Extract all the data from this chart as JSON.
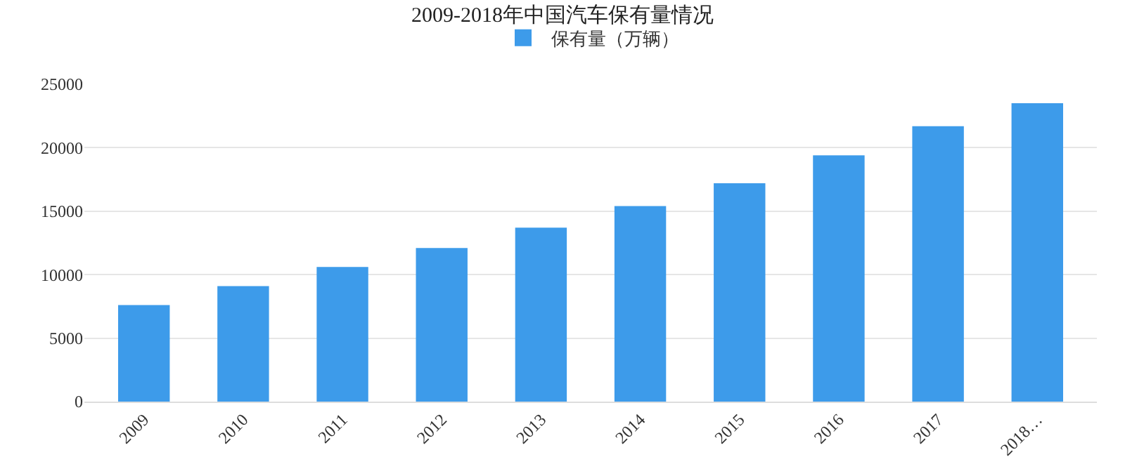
{
  "chart_data": {
    "type": "bar",
    "title": "2009-2018年中国汽车保有量情况",
    "categories": [
      "2009",
      "2010",
      "2011",
      "2012",
      "2013",
      "2014",
      "2015",
      "2016",
      "2017",
      "2018…"
    ],
    "series": [
      {
        "name": "保有量（万辆）",
        "color": "#3d9bea",
        "values": [
          7600,
          9100,
          10600,
          12100,
          13700,
          15400,
          17200,
          19400,
          21700,
          23500
        ]
      }
    ],
    "ylim": [
      0,
      25000
    ],
    "yticks": [
      0,
      5000,
      10000,
      15000,
      20000,
      25000
    ],
    "grid": "y",
    "legend": "top"
  }
}
